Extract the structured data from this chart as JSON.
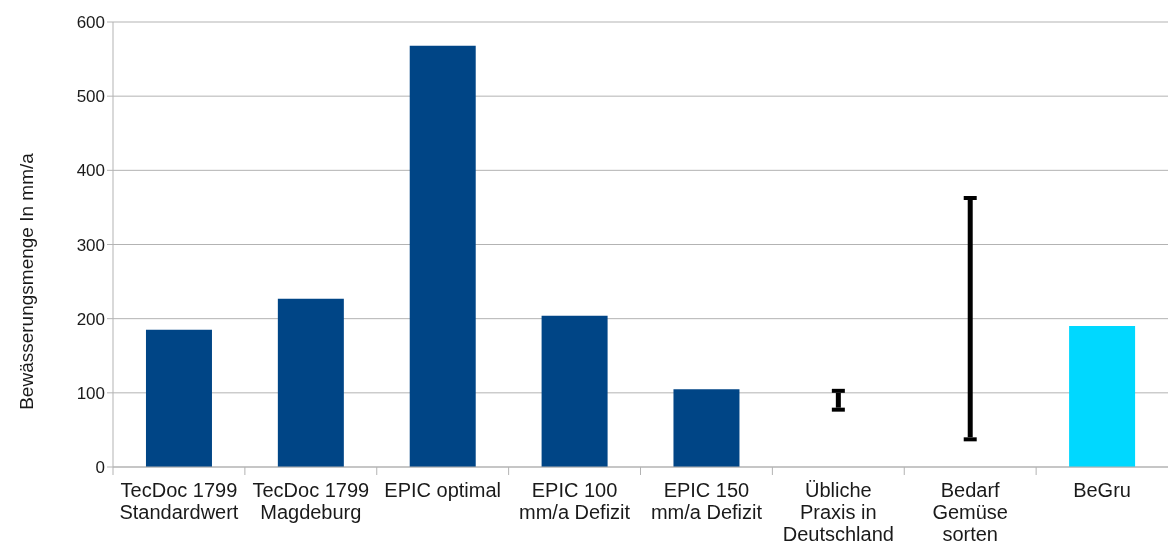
{
  "chart_data": {
    "type": "bar",
    "ylabel": "Bewässerungsmenge In mm/a",
    "categories": [
      "TecDoc 1799 Standardwert",
      "TecDoc 1799 Magdeburg",
      "EPIC optimal",
      "EPIC 100 mm/a Defizit",
      "EPIC 150 mm/a Defizit",
      "Übliche Praxis in Deutschland",
      "Bedarf Gemüse sorten",
      "BeGru"
    ],
    "values": [
      185,
      227,
      568,
      204,
      105,
      20,
      320,
      190
    ],
    "base": [
      null,
      null,
      null,
      null,
      null,
      80,
      40,
      null
    ],
    "colors": [
      "#004586",
      "#004586",
      "#004586",
      "#004586",
      "#004586",
      "#000000",
      "#000000",
      "#00d8ff"
    ],
    "ylim": [
      0,
      600
    ],
    "yticks": [
      0,
      100,
      200,
      300,
      400,
      500,
      600
    ],
    "grid": "y"
  }
}
